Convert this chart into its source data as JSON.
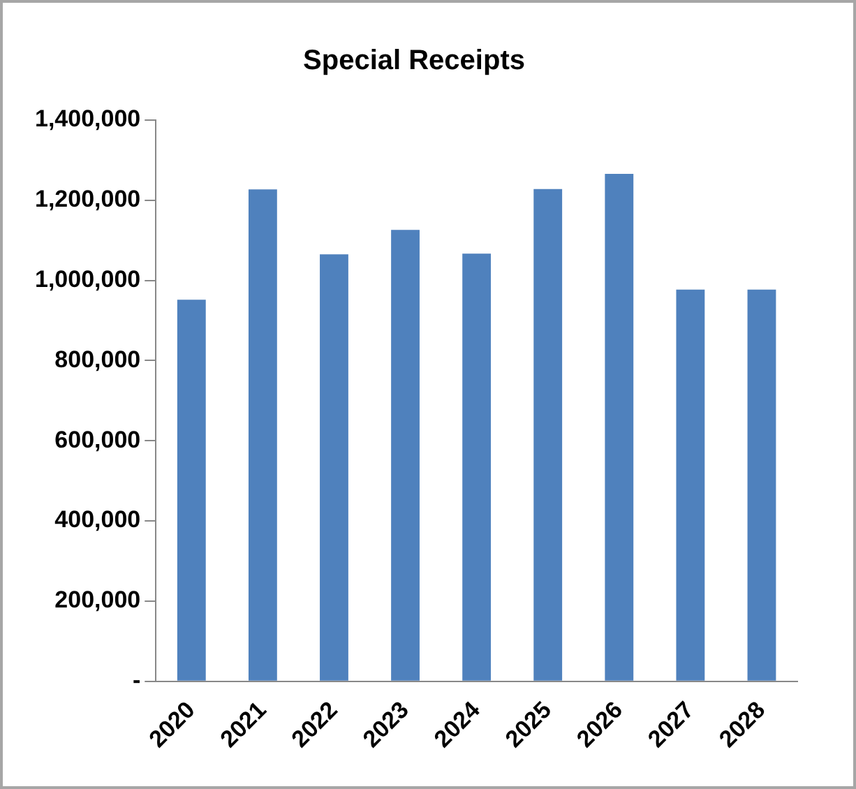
{
  "chart_data": {
    "type": "bar",
    "title": "Special Receipts",
    "categories": [
      "2020",
      "2021",
      "2022",
      "2023",
      "2024",
      "2025",
      "2026",
      "2027",
      "2028"
    ],
    "values": [
      952000,
      1227000,
      1065000,
      1126000,
      1067000,
      1228000,
      1266000,
      977000,
      977000
    ],
    "color": "#4f81bd",
    "ylim": [
      0,
      1400000
    ],
    "yticks": [
      {
        "value": 0,
        "label": "-"
      },
      {
        "value": 200000,
        "label": "200,000"
      },
      {
        "value": 400000,
        "label": "400,000"
      },
      {
        "value": 600000,
        "label": "600,000"
      },
      {
        "value": 800000,
        "label": "800,000"
      },
      {
        "value": 1000000,
        "label": "1,000,000"
      },
      {
        "value": 1200000,
        "label": "1,200,000"
      },
      {
        "value": 1400000,
        "label": "1,400,000"
      }
    ],
    "grid": false,
    "legend": false
  }
}
